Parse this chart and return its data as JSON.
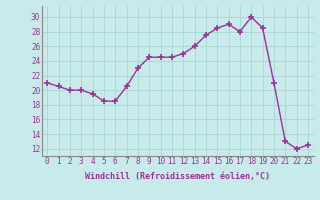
{
  "x": [
    0,
    1,
    2,
    3,
    4,
    5,
    6,
    7,
    8,
    9,
    10,
    11,
    12,
    13,
    14,
    15,
    16,
    17,
    18,
    19,
    20,
    21,
    22,
    23
  ],
  "y": [
    21.0,
    20.5,
    20.0,
    20.0,
    19.5,
    18.5,
    18.5,
    20.5,
    23.0,
    24.5,
    24.5,
    24.5,
    25.0,
    26.0,
    27.5,
    28.5,
    29.0,
    28.0,
    30.0,
    28.5,
    21.0,
    13.0,
    12.0,
    12.5
  ],
  "color": "#993399",
  "bg_color": "#c8eaea",
  "grid_color": "#aad4d4",
  "xlabel": "Windchill (Refroidissement éolien,°C)",
  "xlabel_color": "#993399",
  "xticks": [
    0,
    1,
    2,
    3,
    4,
    5,
    6,
    7,
    8,
    9,
    10,
    11,
    12,
    13,
    14,
    15,
    16,
    17,
    18,
    19,
    20,
    21,
    22,
    23
  ],
  "yticks": [
    12,
    14,
    16,
    18,
    20,
    22,
    24,
    26,
    28,
    30
  ],
  "ylim": [
    11.0,
    31.5
  ],
  "xlim": [
    -0.5,
    23.5
  ],
  "marker": "+",
  "markersize": 4,
  "linewidth": 1.0,
  "tick_fontsize": 5.5,
  "xlabel_fontsize": 6.0
}
